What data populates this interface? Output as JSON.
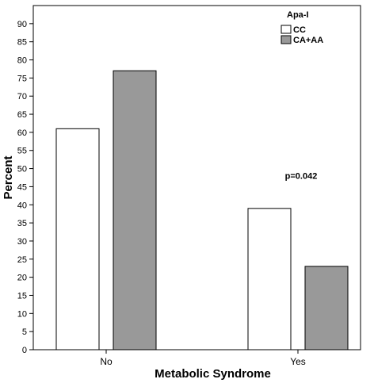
{
  "chart_data": {
    "type": "bar",
    "categories": [
      "No",
      "Yes"
    ],
    "series": [
      {
        "name": "CC",
        "values": [
          61,
          39
        ],
        "color": "#ffffff"
      },
      {
        "name": "CA+AA",
        "values": [
          77,
          23
        ],
        "color": "#999999"
      }
    ],
    "xlabel": "Metabolic Syndrome",
    "ylabel": "Percent",
    "ylim": [
      0,
      95
    ],
    "yticks": [
      0,
      5,
      10,
      15,
      20,
      25,
      30,
      35,
      40,
      45,
      50,
      55,
      60,
      65,
      70,
      75,
      80,
      85,
      90
    ],
    "grid": false,
    "legend": {
      "title": "Apa-I",
      "placement": "top-right"
    },
    "annotations": [
      {
        "text": "p=0.042",
        "category": "Yes",
        "y": 48
      }
    ]
  }
}
